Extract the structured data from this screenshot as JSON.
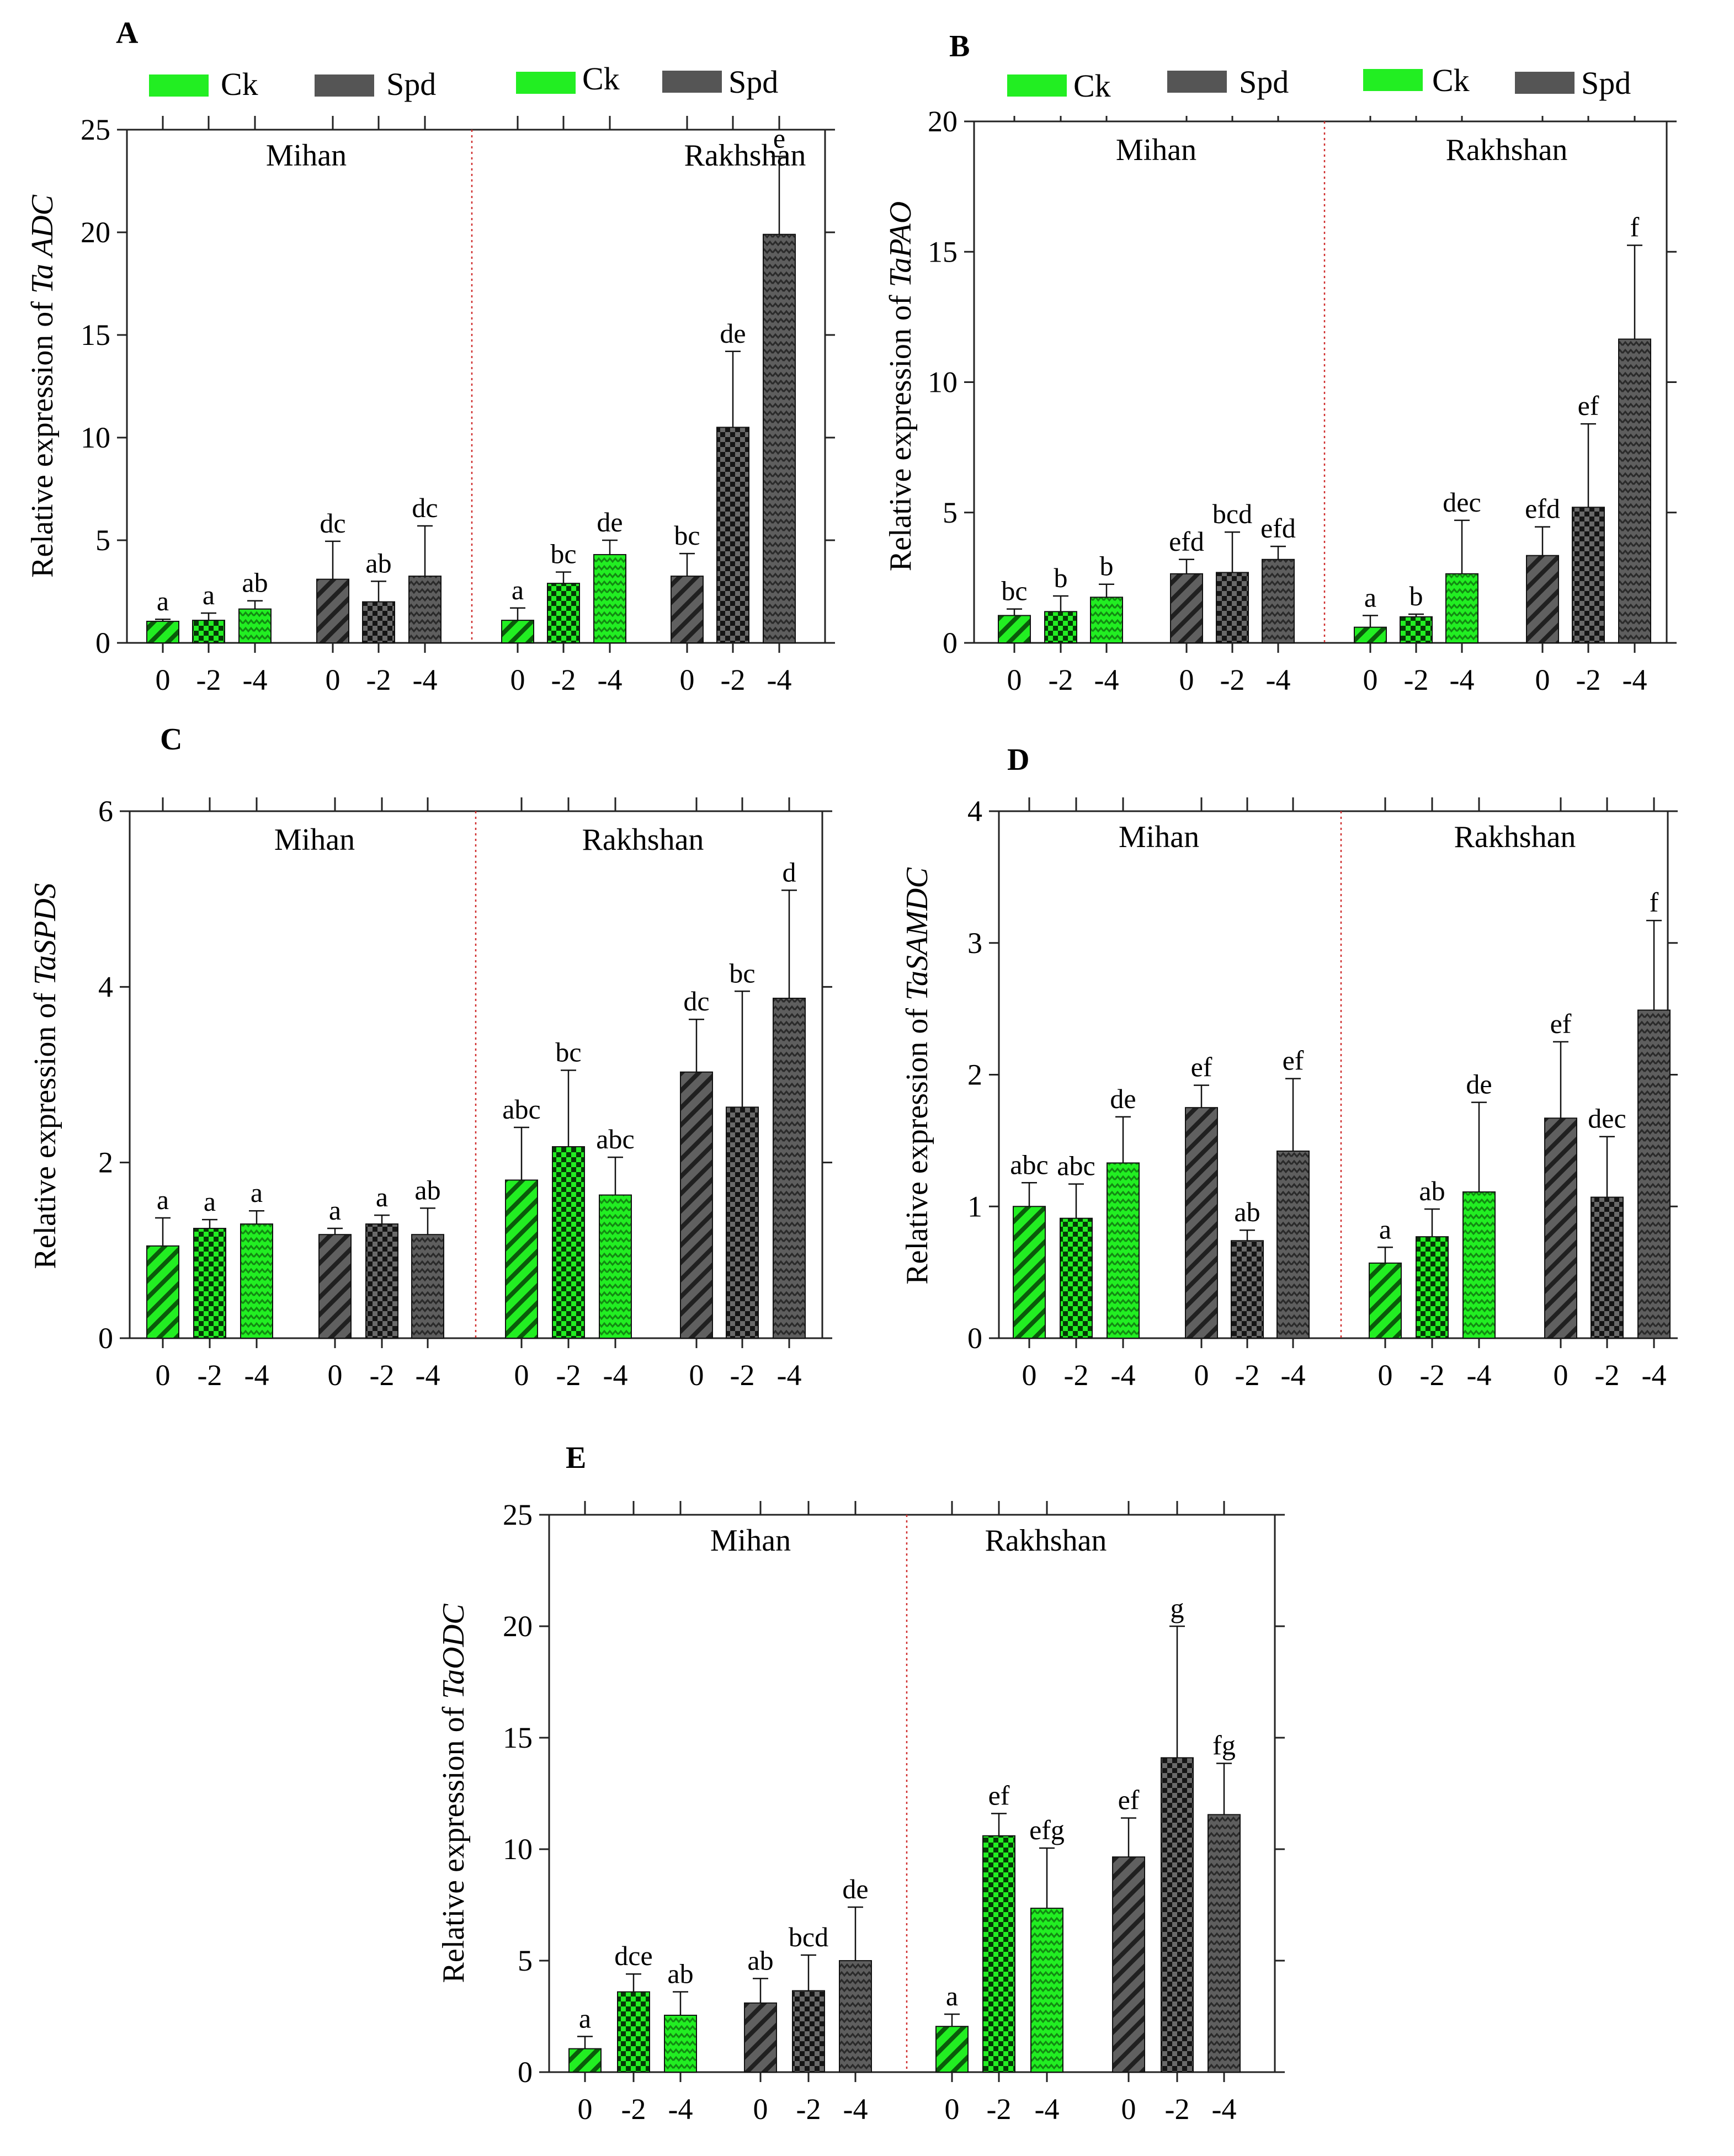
{
  "figure": {
    "legend": {
      "group1": "Ck",
      "group2": "Spd"
    },
    "cultivars": [
      "Mihan",
      "Rakhshan"
    ],
    "colors": {
      "ck": "#22ee22",
      "spd": "#555555",
      "divider": "#d03030",
      "axis": "#222222"
    }
  },
  "chart_data": [
    {
      "panel": "A",
      "type": "bar",
      "title": "Relative expression of Ta ADC",
      "ylabel_prefix": "Relative expression of ",
      "ylabel_gene": "Ta ADC",
      "ylim": [
        0,
        25
      ],
      "yticks": [
        0,
        5,
        10,
        15,
        20,
        25
      ],
      "categories": [
        "0",
        "-2",
        "-4"
      ],
      "groups": [
        {
          "cultivar": "Mihan",
          "treatment": "Ck",
          "values": [
            1.05,
            1.1,
            1.65
          ],
          "errors": [
            0.1,
            0.35,
            0.4
          ],
          "letters": [
            "a",
            "a",
            "ab"
          ]
        },
        {
          "cultivar": "Mihan",
          "treatment": "Spd",
          "values": [
            3.1,
            2.0,
            3.25
          ],
          "errors": [
            1.85,
            1.0,
            2.45
          ],
          "letters": [
            "dc",
            "ab",
            "dc"
          ]
        },
        {
          "cultivar": "Rakhshan",
          "treatment": "Ck",
          "values": [
            1.1,
            2.9,
            4.3
          ],
          "errors": [
            0.6,
            0.55,
            0.7
          ],
          "letters": [
            "a",
            "bc",
            "de"
          ]
        },
        {
          "cultivar": "Rakhshan",
          "treatment": "Spd",
          "values": [
            3.25,
            10.5,
            19.9
          ],
          "errors": [
            1.1,
            3.7,
            3.8
          ],
          "letters": [
            "bc",
            "de",
            "e"
          ]
        }
      ]
    },
    {
      "panel": "B",
      "type": "bar",
      "title": "Relative expression of TaPAO",
      "ylabel_prefix": "Relative expression of ",
      "ylabel_gene": "TaPAO",
      "ylim": [
        0,
        20
      ],
      "yticks": [
        0,
        5,
        10,
        15,
        20
      ],
      "categories": [
        "0",
        "-2",
        "-4"
      ],
      "groups": [
        {
          "cultivar": "Mihan",
          "treatment": "Ck",
          "values": [
            1.05,
            1.2,
            1.75
          ],
          "errors": [
            0.25,
            0.6,
            0.5
          ],
          "letters": [
            "bc",
            "b",
            "b"
          ]
        },
        {
          "cultivar": "Mihan",
          "treatment": "Spd",
          "values": [
            2.65,
            2.7,
            3.2
          ],
          "errors": [
            0.55,
            1.55,
            0.5
          ],
          "letters": [
            "efd",
            "bcd",
            "efd"
          ]
        },
        {
          "cultivar": "Rakhshan",
          "treatment": "Ck",
          "values": [
            0.6,
            1.0,
            2.65
          ],
          "errors": [
            0.45,
            0.1,
            2.05
          ],
          "letters": [
            "a",
            "b",
            "dec"
          ]
        },
        {
          "cultivar": "Rakhshan",
          "treatment": "Spd",
          "values": [
            3.35,
            5.2,
            11.65
          ],
          "errors": [
            1.1,
            3.2,
            3.6
          ],
          "letters": [
            "efd",
            "ef",
            "f"
          ]
        }
      ]
    },
    {
      "panel": "C",
      "type": "bar",
      "title": "Relative expression of TaSPDS",
      "ylabel_prefix": "Relative expression of ",
      "ylabel_gene": "TaSPDS",
      "ylim": [
        0,
        6
      ],
      "yticks": [
        0,
        2,
        4,
        6
      ],
      "categories": [
        "0",
        "-2",
        "-4"
      ],
      "groups": [
        {
          "cultivar": "Mihan",
          "treatment": "Ck",
          "values": [
            1.05,
            1.25,
            1.3
          ],
          "errors": [
            0.32,
            0.1,
            0.15
          ],
          "letters": [
            "a",
            "a",
            "a"
          ]
        },
        {
          "cultivar": "Mihan",
          "treatment": "Spd",
          "values": [
            1.18,
            1.3,
            1.18
          ],
          "errors": [
            0.07,
            0.1,
            0.3
          ],
          "letters": [
            "a",
            "a",
            "ab"
          ]
        },
        {
          "cultivar": "Rakhshan",
          "treatment": "Ck",
          "values": [
            1.8,
            2.18,
            1.63
          ],
          "errors": [
            0.6,
            0.87,
            0.43
          ],
          "letters": [
            "abc",
            "bc",
            "abc"
          ]
        },
        {
          "cultivar": "Rakhshan",
          "treatment": "Spd",
          "values": [
            3.03,
            2.63,
            3.87
          ],
          "errors": [
            0.6,
            1.32,
            1.23
          ],
          "letters": [
            "dc",
            "bc",
            "d"
          ]
        }
      ]
    },
    {
      "panel": "D",
      "type": "bar",
      "title": "Relative expression of TaSAMDC",
      "ylabel_prefix": "Relative expression of ",
      "ylabel_gene": "TaSAMDC",
      "ylim": [
        0,
        4
      ],
      "yticks": [
        0,
        1,
        2,
        3,
        4
      ],
      "categories": [
        "0",
        "-2",
        "-4"
      ],
      "groups": [
        {
          "cultivar": "Mihan",
          "treatment": "Ck",
          "values": [
            1.0,
            0.91,
            1.33
          ],
          "errors": [
            0.18,
            0.26,
            0.35
          ],
          "letters": [
            "abc",
            "abc",
            "de"
          ]
        },
        {
          "cultivar": "Mihan",
          "treatment": "Spd",
          "values": [
            1.75,
            0.74,
            1.42
          ],
          "errors": [
            0.17,
            0.08,
            0.55
          ],
          "letters": [
            "ef",
            "ab",
            "ef"
          ]
        },
        {
          "cultivar": "Rakhshan",
          "treatment": "Ck",
          "values": [
            0.57,
            0.77,
            1.11
          ],
          "errors": [
            0.12,
            0.21,
            0.68
          ],
          "letters": [
            "a",
            "ab",
            "de"
          ]
        },
        {
          "cultivar": "Rakhshan",
          "treatment": "Spd",
          "values": [
            1.67,
            1.07,
            2.49
          ],
          "errors": [
            0.58,
            0.46,
            0.68
          ],
          "letters": [
            "ef",
            "dec",
            "f"
          ]
        }
      ]
    },
    {
      "panel": "E",
      "type": "bar",
      "title": "Relative expression of TaODC",
      "ylabel_prefix": "Relative expression of ",
      "ylabel_gene": "TaODC",
      "ylim": [
        0,
        25
      ],
      "yticks": [
        0,
        5,
        10,
        15,
        20,
        25
      ],
      "categories": [
        "0",
        "-2",
        "-4"
      ],
      "groups": [
        {
          "cultivar": "Mihan",
          "treatment": "Ck",
          "values": [
            1.05,
            3.6,
            2.55
          ],
          "errors": [
            0.55,
            0.8,
            1.05
          ],
          "letters": [
            "a",
            "dce",
            "ab"
          ]
        },
        {
          "cultivar": "Mihan",
          "treatment": "Spd",
          "values": [
            3.1,
            3.65,
            5.0
          ],
          "errors": [
            1.1,
            1.6,
            2.4
          ],
          "letters": [
            "ab",
            "bcd",
            "de"
          ]
        },
        {
          "cultivar": "Rakhshan",
          "treatment": "Ck",
          "values": [
            2.05,
            10.6,
            7.35
          ],
          "errors": [
            0.55,
            1.0,
            2.7
          ],
          "letters": [
            "a",
            "ef",
            "efg"
          ]
        },
        {
          "cultivar": "Rakhshan",
          "treatment": "Spd",
          "values": [
            9.65,
            14.1,
            11.55
          ],
          "errors": [
            1.75,
            5.9,
            2.3
          ],
          "letters": [
            "ef",
            "g",
            "fg"
          ]
        }
      ]
    }
  ]
}
